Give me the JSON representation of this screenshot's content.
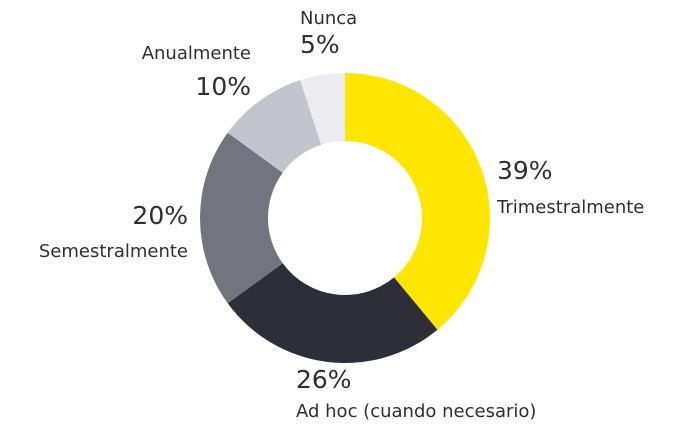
{
  "chart_data": {
    "type": "donut",
    "categories": [
      "Trimestralmente",
      "Ad hoc (cuando necesario)",
      "Semestralmente",
      "Anualmente",
      "Nunca"
    ],
    "values": [
      39,
      26,
      20,
      10,
      5
    ],
    "value_labels": [
      "39%",
      "26%",
      "20%",
      "10%",
      "5%"
    ],
    "colors": [
      "#ffe600",
      "#2e2e38",
      "#747480",
      "#c4c4cd",
      "#ebebf0"
    ]
  }
}
